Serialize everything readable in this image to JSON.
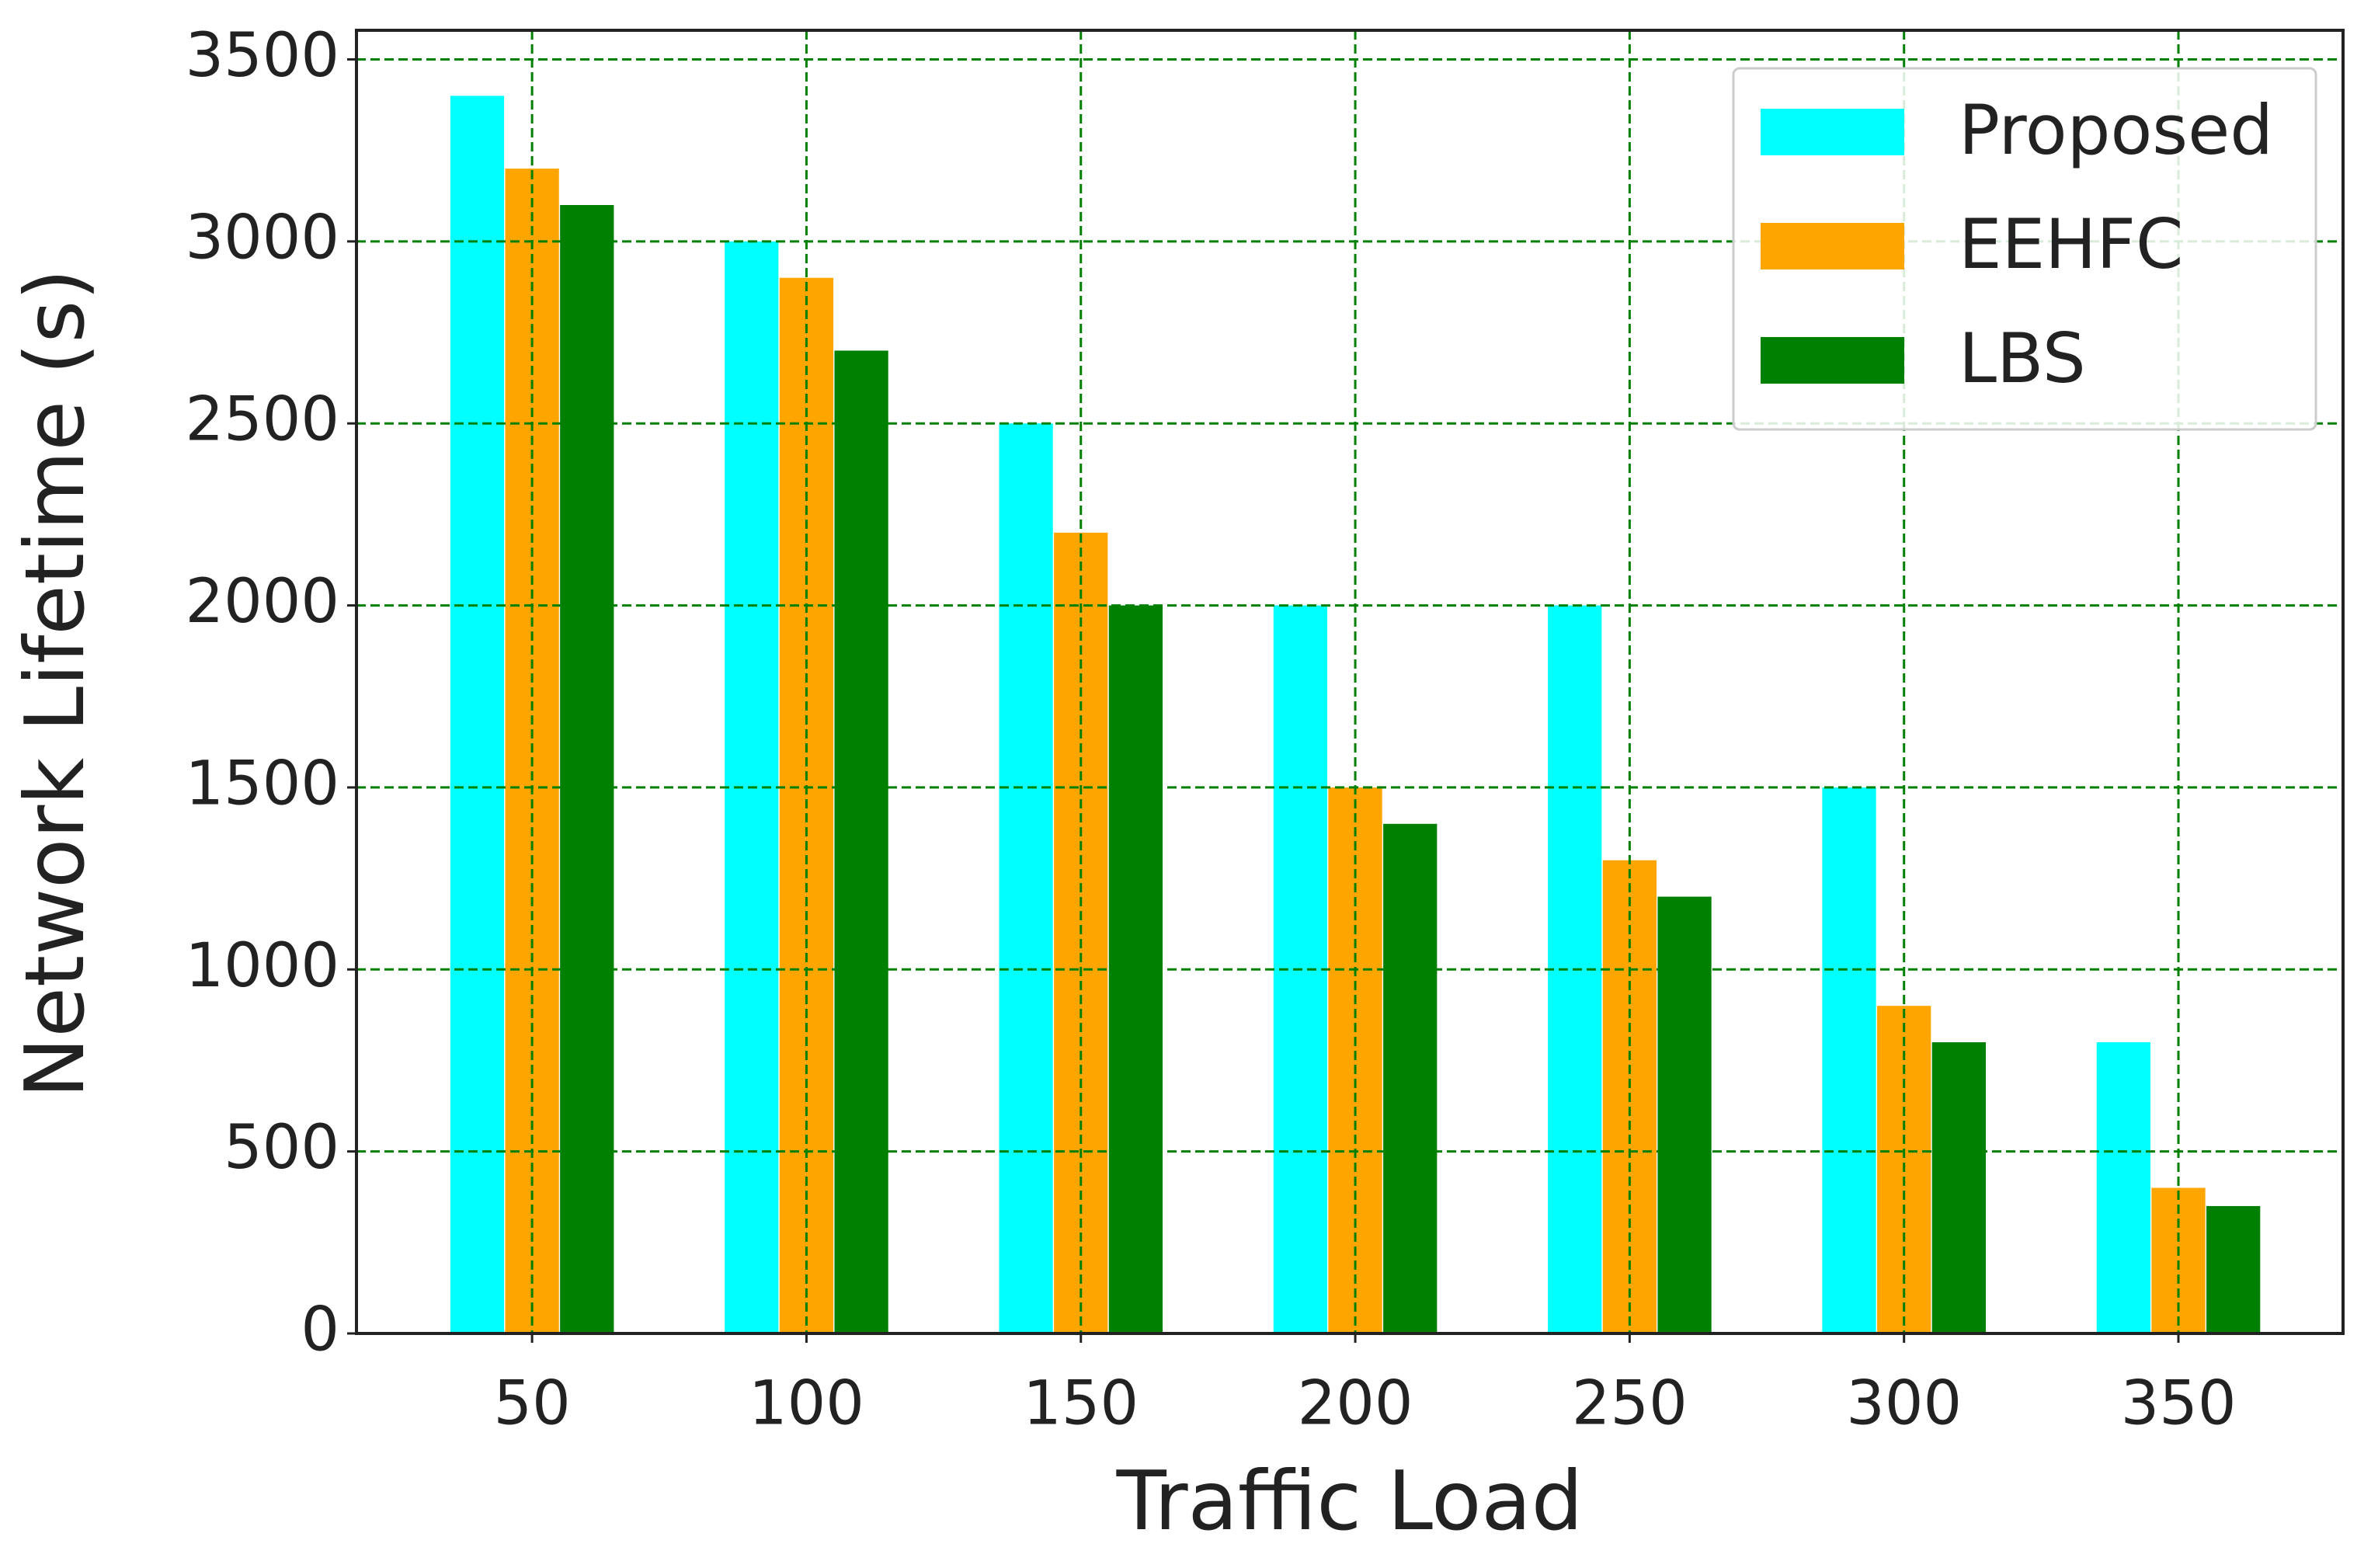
{
  "chart_data": {
    "type": "bar",
    "x_label": "Traffic Load",
    "y_label": "Network Lifetime (s)",
    "x": [
      50,
      100,
      150,
      200,
      250,
      300,
      350
    ],
    "series": [
      {
        "name": "Proposed",
        "color": "#00ffff",
        "values": [
          3400,
          3000,
          2500,
          2000,
          2000,
          1500,
          800
        ]
      },
      {
        "name": "EEHFC",
        "color": "#ffa500",
        "values": [
          3200,
          2900,
          2200,
          1500,
          1300,
          900,
          400
        ]
      },
      {
        "name": "LBS",
        "color": "#008000",
        "values": [
          3100,
          2700,
          2000,
          1400,
          1200,
          800,
          350
        ]
      }
    ],
    "xlim": [
      18,
      380
    ],
    "xticks": [
      50,
      100,
      150,
      200,
      250,
      300,
      350
    ],
    "ylim": [
      0,
      3580
    ],
    "yticks": [
      0,
      500,
      1000,
      1500,
      2000,
      2500,
      3000,
      3500
    ],
    "grid": true,
    "grid_color": "#008000",
    "legend": "upper right"
  }
}
